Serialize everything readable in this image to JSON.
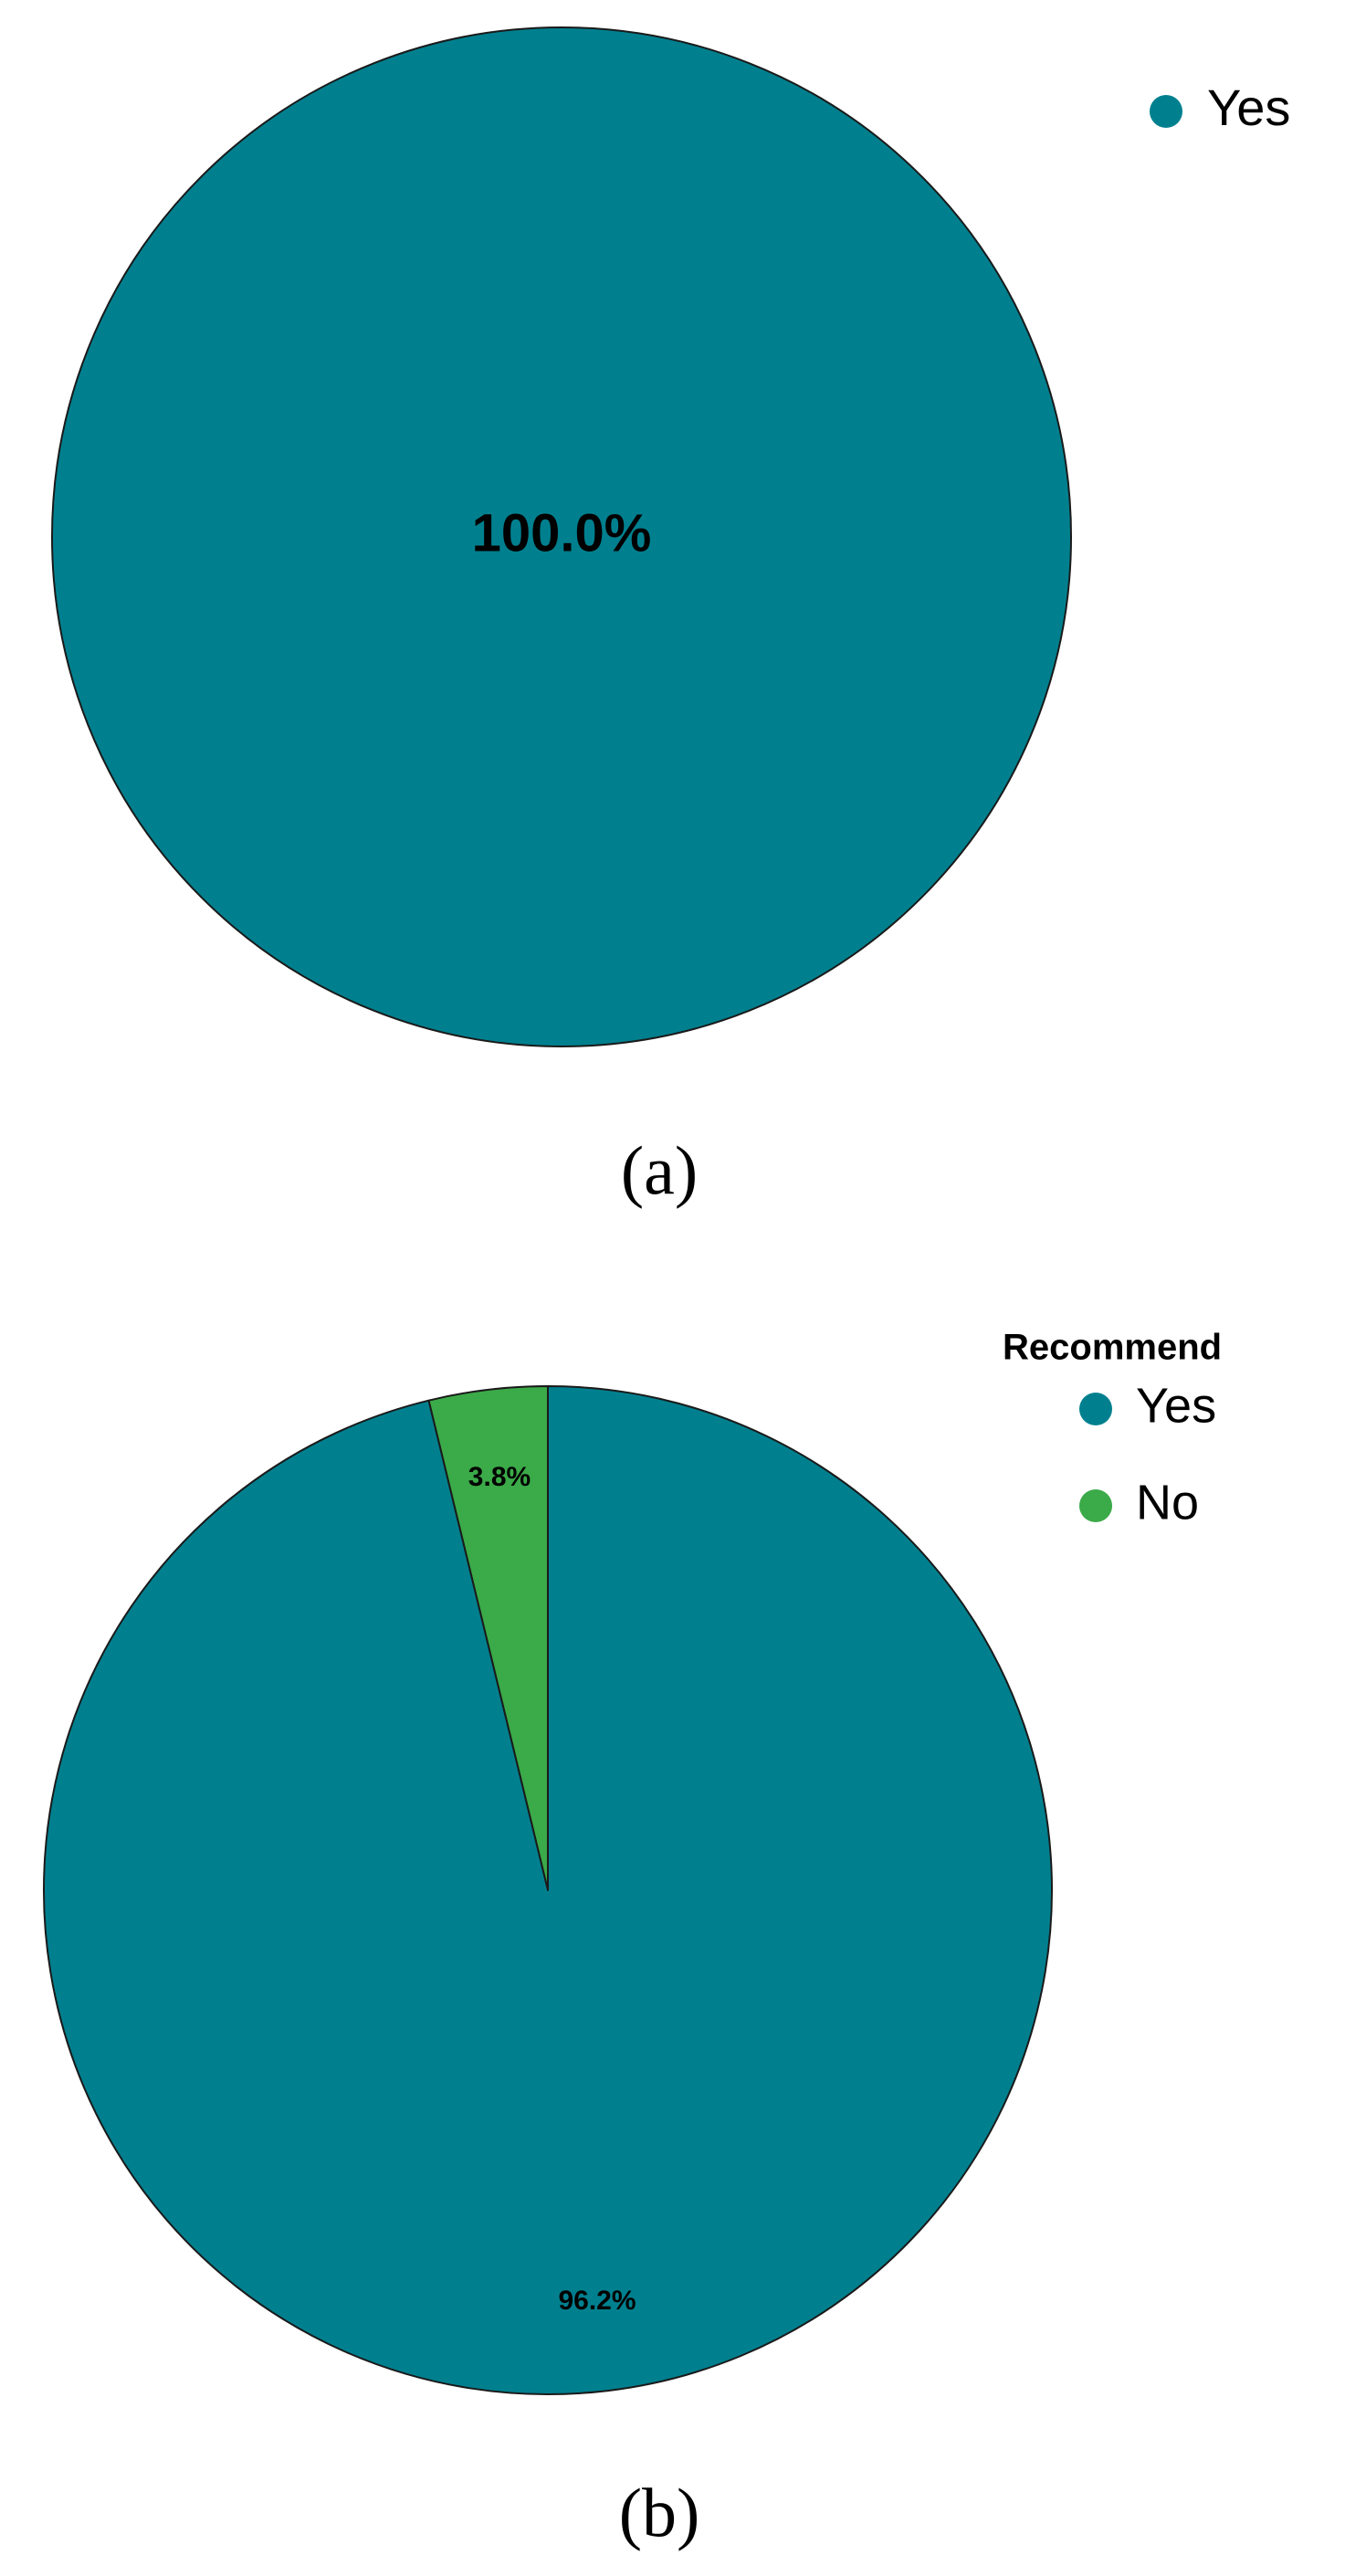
{
  "chart_data": [
    {
      "type": "pie",
      "panel_label": "(a)",
      "legend_title": "",
      "legend_position": "top-right",
      "slices": [
        {
          "label": "Yes",
          "value": 100.0,
          "display": "100.0%",
          "color": "#00808F"
        }
      ]
    },
    {
      "type": "pie",
      "panel_label": "(b)",
      "legend_title": "Recommend",
      "legend_position": "top-right",
      "slices": [
        {
          "label": "Yes",
          "value": 96.2,
          "display": "96.2%",
          "color": "#00808F"
        },
        {
          "label": "No",
          "value": 3.8,
          "display": "3.8%",
          "color": "#3BAA48"
        }
      ]
    }
  ]
}
